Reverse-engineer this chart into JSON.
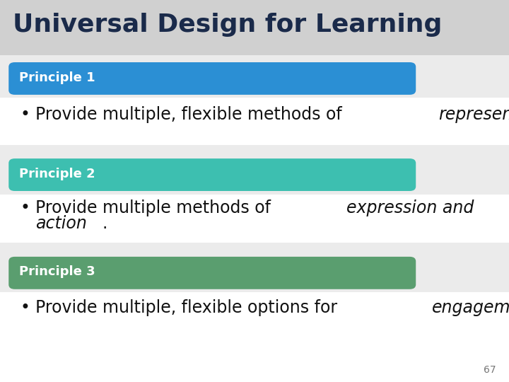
{
  "title": "Universal Design for Learning",
  "title_color": "#1a2a4a",
  "title_fontsize": 26,
  "background_color": "#d8d8d8",
  "principles": [
    {
      "label": "Principle 1",
      "label_color": "#2b8fd4",
      "lines": [
        {
          "parts": [
            {
              "text": "Provide multiple, flexible methods of ",
              "style": "normal"
            },
            {
              "text": "representation",
              "style": "italic"
            },
            {
              "text": ".",
              "style": "normal"
            }
          ]
        },
        {
          "parts": []
        }
      ]
    },
    {
      "label": "Principle 2",
      "label_color": "#3dbfb0",
      "lines": [
        {
          "parts": [
            {
              "text": "Provide multiple methods of ",
              "style": "normal"
            },
            {
              "text": "expression and",
              "style": "italic"
            }
          ]
        },
        {
          "parts": [
            {
              "text": "action",
              "style": "italic"
            },
            {
              "text": ".",
              "style": "normal"
            }
          ]
        }
      ]
    },
    {
      "label": "Principle 3",
      "label_color": "#5a9e6f",
      "lines": [
        {
          "parts": [
            {
              "text": "Provide multiple, flexible options for ",
              "style": "normal"
            },
            {
              "text": "engagement",
              "style": "italic"
            },
            {
              "text": ".",
              "style": "normal"
            }
          ]
        },
        {
          "parts": []
        }
      ]
    }
  ],
  "page_number": "67",
  "text_color": "#111111",
  "text_fontsize": 17,
  "banner_fontsize": 13,
  "white_bg": "#ffffff",
  "light_bg": "#ebebeb"
}
